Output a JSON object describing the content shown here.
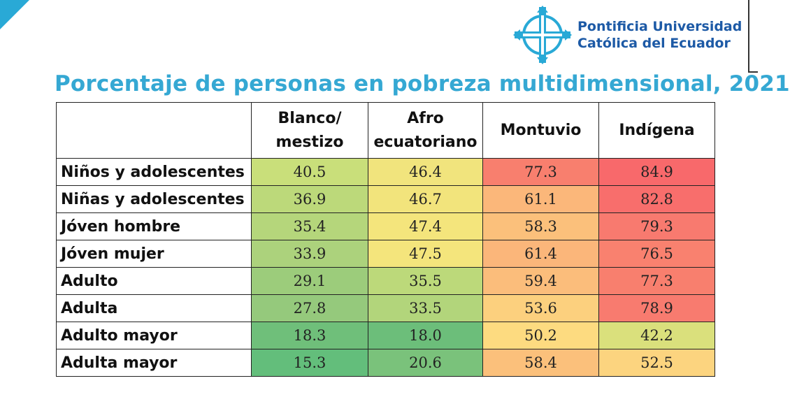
{
  "header": {
    "institution_line1": "Pontificia Universidad",
    "institution_line2": "Católica del Ecuador",
    "logo_icon": "puce-cross-logo-icon",
    "accent_color": "#29a9d6",
    "logo_color": "#1d5aa6"
  },
  "title": "Porcentaje de personas en pobreza multidimensional, 2021",
  "table": {
    "columns": [
      {
        "line1": "Blanco/",
        "line2": "mestizo"
      },
      {
        "line1": "Afro",
        "line2": "ecuatoriano"
      },
      {
        "line1": "Montuvio",
        "line2": ""
      },
      {
        "line1": "Indígena",
        "line2": ""
      }
    ],
    "rows": [
      {
        "label": "Niños y adolescentes",
        "values": [
          "40.5",
          "46.4",
          "77.3",
          "84.9"
        ],
        "colors": [
          "#c9df7a",
          "#f1e47d",
          "#f87f6e",
          "#f8696b"
        ]
      },
      {
        "label": "Niñas y adolescentes",
        "values": [
          "36.9",
          "46.7",
          "61.1",
          "82.8"
        ],
        "colors": [
          "#bcd97a",
          "#f2e47c",
          "#fbb77a",
          "#f86e6c"
        ]
      },
      {
        "label": "Jóven hombre",
        "values": [
          "35.4",
          "47.4",
          "58.3",
          "79.3"
        ],
        "colors": [
          "#b5d67b",
          "#f4e57c",
          "#fbc07b",
          "#f87a6f"
        ]
      },
      {
        "label": "Jóven mujer",
        "values": [
          "33.9",
          "47.5",
          "61.4",
          "76.5"
        ],
        "colors": [
          "#acd27c",
          "#f4e57c",
          "#fbb67a",
          "#f9816f"
        ]
      },
      {
        "label": "Adulto",
        "values": [
          "29.1",
          "35.5",
          "59.4",
          "77.3"
        ],
        "colors": [
          "#9ccc7b",
          "#bcd97a",
          "#fbbd7b",
          "#f87f6e"
        ]
      },
      {
        "label": "Adulta",
        "values": [
          "27.8",
          "33.5",
          "53.6",
          "78.9"
        ],
        "colors": [
          "#95c97c",
          "#b2d57b",
          "#fcd07e",
          "#f87b6f"
        ]
      },
      {
        "label": "Adulto mayor",
        "values": [
          "18.3",
          "18.0",
          "50.2",
          "42.2"
        ],
        "colors": [
          "#6fbf7a",
          "#6cbe7a",
          "#fddb80",
          "#dae07c"
        ]
      },
      {
        "label": "Adulta mayor",
        "values": [
          "15.3",
          "20.6",
          "58.4",
          "52.5"
        ],
        "colors": [
          "#63be7b",
          "#7ac27b",
          "#fbc07b",
          "#fcd47f"
        ]
      }
    ]
  }
}
